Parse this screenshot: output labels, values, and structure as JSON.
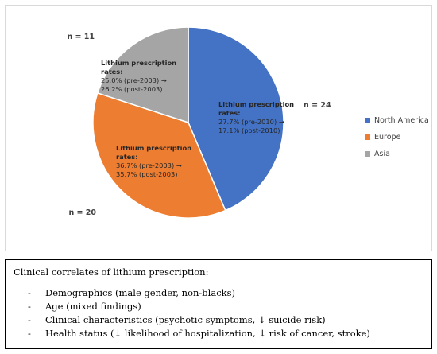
{
  "chart_data": {
    "type": "pie",
    "categories": [
      "North America",
      "Europe",
      "Asia"
    ],
    "values": [
      24,
      20,
      11
    ],
    "colors": [
      "#4472c4",
      "#ed7d31",
      "#a5a5a5"
    ],
    "count_labels": [
      "n = 24",
      "n = 20",
      "n = 11"
    ],
    "slice_annotations": [
      [
        "Lithium prescription",
        "rates:",
        "27.7% (pre-2010) →",
        "17.1% (post-2010)"
      ],
      [
        "Lithium prescription",
        "rates:",
        "36.7% (pre-2003) →",
        "35.7% (post-2003)"
      ],
      [
        "Lithium prescription",
        "rates:",
        "25.0% (pre-2003) →",
        "26.2% (post-2003)"
      ]
    ],
    "legend_position": "right"
  },
  "notes": {
    "heading": "Clinical correlates of lithium prescription:",
    "bullet": "-",
    "items": [
      "Demographics (male gender, non-blacks)",
      "Age (mixed findings)",
      "Clinical characteristics (psychotic symptoms, ↓ suicide risk)",
      "Health status (↓ likelihood of hospitalization, ↓ risk of cancer, stroke)"
    ]
  }
}
